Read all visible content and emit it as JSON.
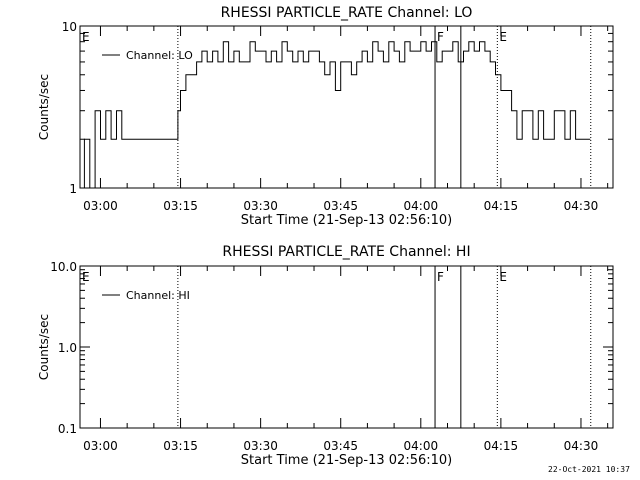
{
  "footer": {
    "timestamp": "22-Oct-2021 10:37"
  },
  "chart_data": [
    {
      "type": "line",
      "title": "RHESSI PARTICLE_RATE Channel: LO",
      "xlabel": "Start Time (21-Sep-13 02:56:10)",
      "ylabel": "Counts/sec",
      "yscale": "log",
      "ylim": [
        1,
        10
      ],
      "y_tick_labels": [
        "1",
        "10"
      ],
      "xlim": [
        "02:56:10",
        "04:36:00"
      ],
      "x_tick_labels": [
        "03:00",
        "03:15",
        "03:30",
        "03:45",
        "04:00",
        "04:15",
        "04:30"
      ],
      "grid": false,
      "legend": {
        "position": "top-left",
        "entries": [
          "Channel: LO"
        ]
      },
      "markers": [
        {
          "time": "02:56:10",
          "label": "E",
          "style": "dotted"
        },
        {
          "time": "03:14:30",
          "label": "",
          "style": "dotted"
        },
        {
          "time": "04:02:40",
          "label": "F",
          "style": "solid"
        },
        {
          "time": "04:07:30",
          "label": "",
          "style": "solid"
        },
        {
          "time": "04:14:20",
          "label": "E",
          "style": "dotted"
        },
        {
          "time": "04:31:50",
          "label": "",
          "style": "dotted"
        }
      ],
      "series": [
        {
          "name": "Channel: LO",
          "x": [
            "02:56:10",
            "02:57:00",
            "02:58:00",
            "02:59:00",
            "03:00:00",
            "03:01:00",
            "03:02:00",
            "03:03:00",
            "03:04:00",
            "03:05:00",
            "03:06:00",
            "03:08:00",
            "03:10:00",
            "03:12:00",
            "03:14:00",
            "03:14:30",
            "03:15:00",
            "03:16:00",
            "03:17:00",
            "03:18:00",
            "03:19:00",
            "03:20:00",
            "03:21:00",
            "03:22:00",
            "03:23:00",
            "03:24:00",
            "03:25:00",
            "03:26:00",
            "03:27:00",
            "03:28:00",
            "03:29:00",
            "03:30:00",
            "03:31:00",
            "03:32:00",
            "03:33:00",
            "03:34:00",
            "03:35:00",
            "03:36:00",
            "03:37:00",
            "03:38:00",
            "03:39:00",
            "03:40:00",
            "03:41:00",
            "03:42:00",
            "03:43:00",
            "03:44:00",
            "03:45:00",
            "03:46:00",
            "03:47:00",
            "03:48:00",
            "03:49:00",
            "03:50:00",
            "03:51:00",
            "03:52:00",
            "03:53:00",
            "03:54:00",
            "03:55:00",
            "03:56:00",
            "03:57:00",
            "03:58:00",
            "03:59:00",
            "04:00:00",
            "04:01:00",
            "04:02:00",
            "04:03:00",
            "04:04:00",
            "04:05:00",
            "04:06:00",
            "04:07:00",
            "04:08:00",
            "04:09:00",
            "04:10:00",
            "04:11:00",
            "04:12:00",
            "04:13:00",
            "04:14:00",
            "04:15:00",
            "04:16:00",
            "04:17:00",
            "04:18:00",
            "04:19:00",
            "04:20:00",
            "04:21:00",
            "04:22:00",
            "04:23:00",
            "04:24:00",
            "04:25:00",
            "04:26:00",
            "04:27:00",
            "04:28:00",
            "04:29:00",
            "04:30:00",
            "04:31:00"
          ],
          "values": [
            1,
            2,
            1,
            3,
            2,
            3,
            2,
            3,
            2,
            2,
            2,
            2,
            2,
            2,
            2,
            3,
            4,
            5,
            5,
            6,
            7,
            6,
            7,
            6,
            8,
            6,
            7,
            6,
            6,
            8,
            7,
            7,
            6,
            7,
            6,
            8,
            7,
            6,
            7,
            6,
            7,
            7,
            6,
            5,
            6,
            4,
            6,
            6,
            5,
            6,
            7,
            6,
            8,
            7,
            6,
            8,
            7,
            6,
            8,
            7,
            7,
            8,
            7,
            8,
            6,
            7,
            7,
            8,
            6,
            7,
            8,
            7,
            8,
            7,
            6,
            5,
            4,
            4,
            3,
            2,
            3,
            3,
            2,
            3,
            2,
            2,
            3,
            3,
            2,
            3,
            2,
            2,
            2
          ]
        }
      ]
    },
    {
      "type": "line",
      "title": "RHESSI PARTICLE_RATE Channel: HI",
      "xlabel": "Start Time (21-Sep-13 02:56:10)",
      "ylabel": "Counts/sec",
      "yscale": "log",
      "ylim": [
        0.1,
        10
      ],
      "y_tick_labels": [
        "0.1",
        "1.0",
        "10.0"
      ],
      "xlim": [
        "02:56:10",
        "04:36:00"
      ],
      "x_tick_labels": [
        "03:00",
        "03:15",
        "03:30",
        "03:45",
        "04:00",
        "04:15",
        "04:30"
      ],
      "grid": false,
      "legend": {
        "position": "top-left",
        "entries": [
          "Channel: HI"
        ]
      },
      "markers": [
        {
          "time": "02:56:10",
          "label": "E",
          "style": "dotted"
        },
        {
          "time": "03:14:30",
          "label": "",
          "style": "dotted"
        },
        {
          "time": "04:02:40",
          "label": "F",
          "style": "solid"
        },
        {
          "time": "04:07:30",
          "label": "",
          "style": "solid"
        },
        {
          "time": "04:14:20",
          "label": "E",
          "style": "dotted"
        },
        {
          "time": "04:31:50",
          "label": "",
          "style": "dotted"
        }
      ],
      "series": [
        {
          "name": "Channel: HI",
          "x": [],
          "values": []
        }
      ]
    }
  ]
}
